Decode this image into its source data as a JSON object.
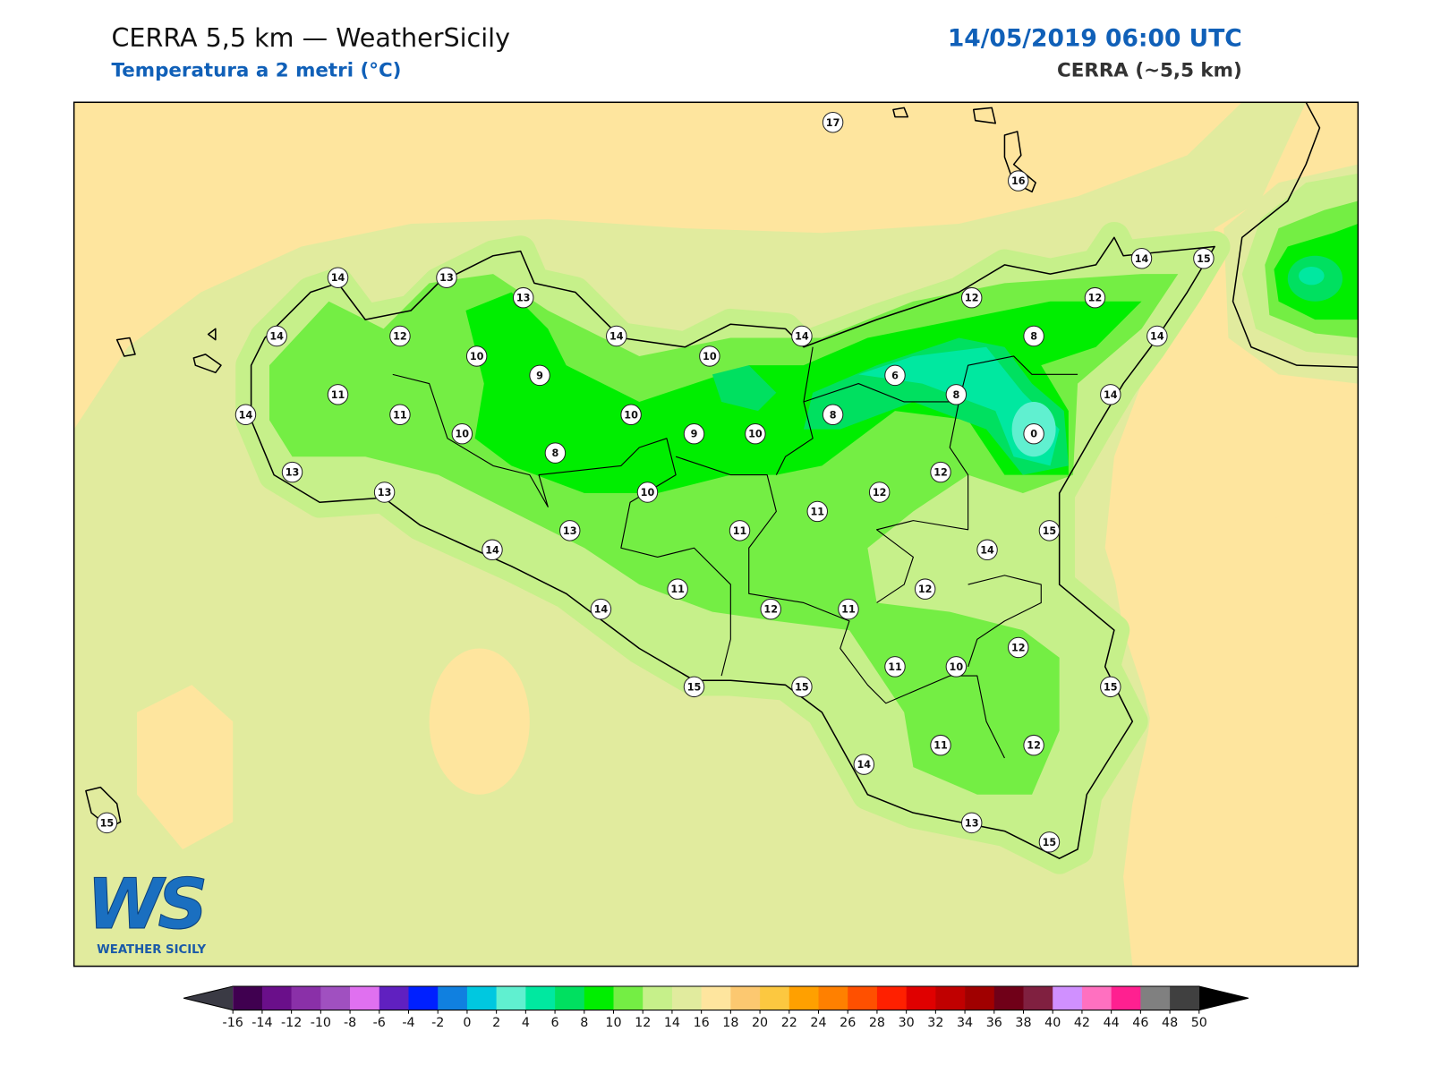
{
  "header": {
    "title": "CERRA 5,5 km — WeatherSicily",
    "subtitle": "Temperatura a 2 metri (°C)",
    "datetime": "14/05/2019 06:00 UTC",
    "model": "CERRA (~5,5 km)"
  },
  "stations": [
    17,
    16,
    14,
    13,
    13,
    14,
    12,
    10,
    9,
    14,
    10,
    14,
    12,
    12,
    14,
    15,
    8,
    14,
    6,
    8,
    14,
    11,
    14,
    11,
    10,
    10,
    9,
    10,
    8,
    0,
    8,
    13,
    13,
    10,
    12,
    12,
    11,
    11,
    13,
    15,
    14,
    14,
    11,
    12,
    14,
    12,
    11,
    12,
    11,
    10,
    15,
    15,
    15,
    11,
    12,
    14,
    13,
    15,
    15
  ],
  "colorbar": {
    "ticks": [
      -16,
      -14,
      -12,
      -10,
      -8,
      -6,
      -4,
      -2,
      0,
      2,
      4,
      6,
      8,
      10,
      12,
      14,
      16,
      18,
      20,
      22,
      24,
      26,
      28,
      30,
      32,
      34,
      36,
      38,
      40,
      42,
      44,
      46,
      48,
      50
    ],
    "colors": [
      "#400050",
      "#6a0f8a",
      "#8a30a8",
      "#a050c0",
      "#e070f0",
      "#6020c0",
      "#0020ff",
      "#1080e0",
      "#00c8e0",
      "#60f0d0",
      "#00e8a0",
      "#00e060",
      "#00ee00",
      "#74ee44",
      "#c6f08a",
      "#e1eb9e",
      "#fee59e",
      "#fcc870",
      "#fcc840",
      "#ffa000",
      "#ff8000",
      "#ff5000",
      "#ff2000",
      "#e00000",
      "#c00000",
      "#a00000",
      "#700018",
      "#802040",
      "#d090ff",
      "#ff70c0",
      "#ff2090",
      "#808080",
      "#404040"
    ],
    "under_color": "#3a3a44",
    "over_color": "#000000"
  },
  "logo": {
    "mark": "WS",
    "text": "WEATHER SICILY"
  }
}
